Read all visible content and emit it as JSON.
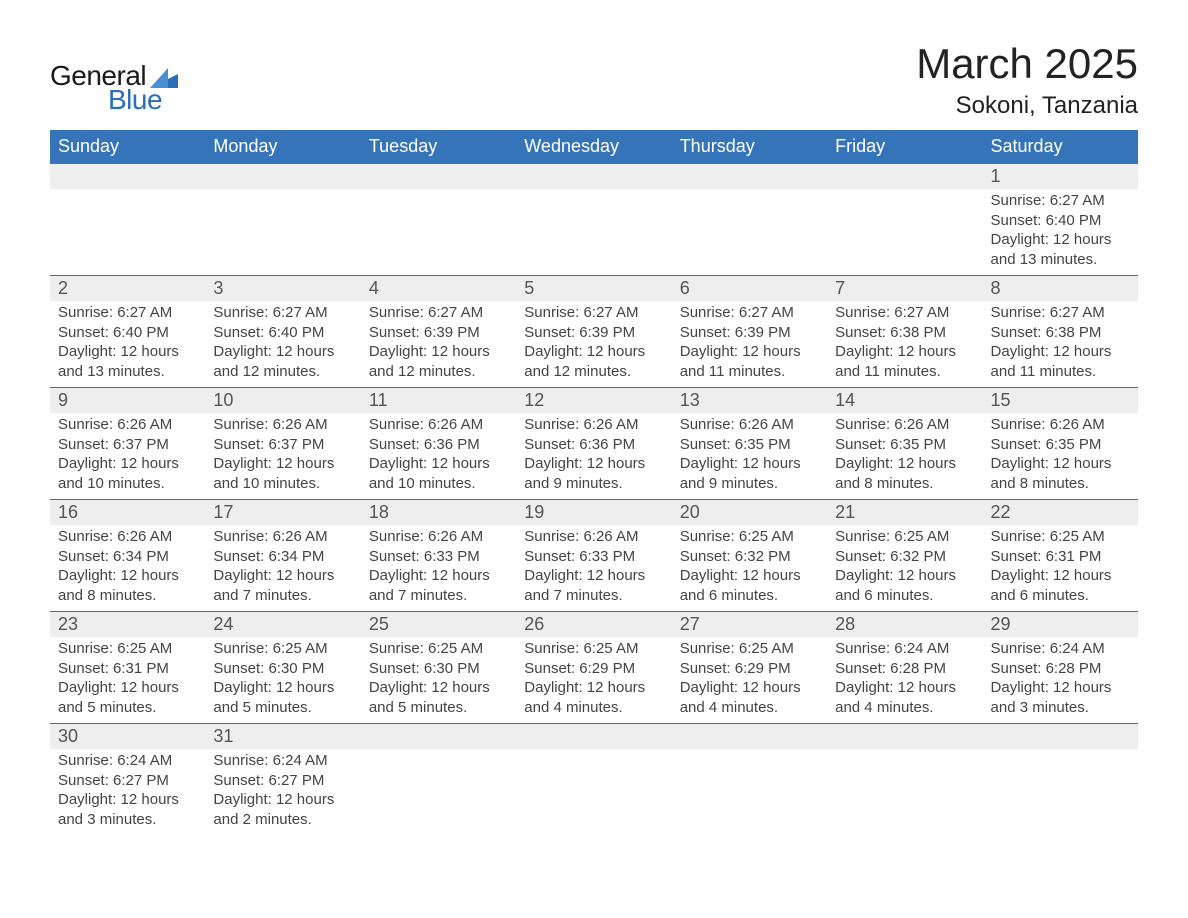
{
  "logo": {
    "text1": "General",
    "text2": "Blue"
  },
  "title": "March 2025",
  "location": "Sokoni, Tanzania",
  "colors": {
    "header_bg": "#3574b9",
    "header_text": "#ffffff",
    "daynum_bg": "#eeeeee",
    "text": "#444444",
    "logo_blue": "#2a6db8",
    "border": "#3574b9"
  },
  "dayNames": [
    "Sunday",
    "Monday",
    "Tuesday",
    "Wednesday",
    "Thursday",
    "Friday",
    "Saturday"
  ],
  "startOffset": 6,
  "days": [
    {
      "n": 1,
      "sunrise": "6:27 AM",
      "sunset": "6:40 PM",
      "daylight": "12 hours and 13 minutes."
    },
    {
      "n": 2,
      "sunrise": "6:27 AM",
      "sunset": "6:40 PM",
      "daylight": "12 hours and 13 minutes."
    },
    {
      "n": 3,
      "sunrise": "6:27 AM",
      "sunset": "6:40 PM",
      "daylight": "12 hours and 12 minutes."
    },
    {
      "n": 4,
      "sunrise": "6:27 AM",
      "sunset": "6:39 PM",
      "daylight": "12 hours and 12 minutes."
    },
    {
      "n": 5,
      "sunrise": "6:27 AM",
      "sunset": "6:39 PM",
      "daylight": "12 hours and 12 minutes."
    },
    {
      "n": 6,
      "sunrise": "6:27 AM",
      "sunset": "6:39 PM",
      "daylight": "12 hours and 11 minutes."
    },
    {
      "n": 7,
      "sunrise": "6:27 AM",
      "sunset": "6:38 PM",
      "daylight": "12 hours and 11 minutes."
    },
    {
      "n": 8,
      "sunrise": "6:27 AM",
      "sunset": "6:38 PM",
      "daylight": "12 hours and 11 minutes."
    },
    {
      "n": 9,
      "sunrise": "6:26 AM",
      "sunset": "6:37 PM",
      "daylight": "12 hours and 10 minutes."
    },
    {
      "n": 10,
      "sunrise": "6:26 AM",
      "sunset": "6:37 PM",
      "daylight": "12 hours and 10 minutes."
    },
    {
      "n": 11,
      "sunrise": "6:26 AM",
      "sunset": "6:36 PM",
      "daylight": "12 hours and 10 minutes."
    },
    {
      "n": 12,
      "sunrise": "6:26 AM",
      "sunset": "6:36 PM",
      "daylight": "12 hours and 9 minutes."
    },
    {
      "n": 13,
      "sunrise": "6:26 AM",
      "sunset": "6:35 PM",
      "daylight": "12 hours and 9 minutes."
    },
    {
      "n": 14,
      "sunrise": "6:26 AM",
      "sunset": "6:35 PM",
      "daylight": "12 hours and 8 minutes."
    },
    {
      "n": 15,
      "sunrise": "6:26 AM",
      "sunset": "6:35 PM",
      "daylight": "12 hours and 8 minutes."
    },
    {
      "n": 16,
      "sunrise": "6:26 AM",
      "sunset": "6:34 PM",
      "daylight": "12 hours and 8 minutes."
    },
    {
      "n": 17,
      "sunrise": "6:26 AM",
      "sunset": "6:34 PM",
      "daylight": "12 hours and 7 minutes."
    },
    {
      "n": 18,
      "sunrise": "6:26 AM",
      "sunset": "6:33 PM",
      "daylight": "12 hours and 7 minutes."
    },
    {
      "n": 19,
      "sunrise": "6:26 AM",
      "sunset": "6:33 PM",
      "daylight": "12 hours and 7 minutes."
    },
    {
      "n": 20,
      "sunrise": "6:25 AM",
      "sunset": "6:32 PM",
      "daylight": "12 hours and 6 minutes."
    },
    {
      "n": 21,
      "sunrise": "6:25 AM",
      "sunset": "6:32 PM",
      "daylight": "12 hours and 6 minutes."
    },
    {
      "n": 22,
      "sunrise": "6:25 AM",
      "sunset": "6:31 PM",
      "daylight": "12 hours and 6 minutes."
    },
    {
      "n": 23,
      "sunrise": "6:25 AM",
      "sunset": "6:31 PM",
      "daylight": "12 hours and 5 minutes."
    },
    {
      "n": 24,
      "sunrise": "6:25 AM",
      "sunset": "6:30 PM",
      "daylight": "12 hours and 5 minutes."
    },
    {
      "n": 25,
      "sunrise": "6:25 AM",
      "sunset": "6:30 PM",
      "daylight": "12 hours and 5 minutes."
    },
    {
      "n": 26,
      "sunrise": "6:25 AM",
      "sunset": "6:29 PM",
      "daylight": "12 hours and 4 minutes."
    },
    {
      "n": 27,
      "sunrise": "6:25 AM",
      "sunset": "6:29 PM",
      "daylight": "12 hours and 4 minutes."
    },
    {
      "n": 28,
      "sunrise": "6:24 AM",
      "sunset": "6:28 PM",
      "daylight": "12 hours and 4 minutes."
    },
    {
      "n": 29,
      "sunrise": "6:24 AM",
      "sunset": "6:28 PM",
      "daylight": "12 hours and 3 minutes."
    },
    {
      "n": 30,
      "sunrise": "6:24 AM",
      "sunset": "6:27 PM",
      "daylight": "12 hours and 3 minutes."
    },
    {
      "n": 31,
      "sunrise": "6:24 AM",
      "sunset": "6:27 PM",
      "daylight": "12 hours and 2 minutes."
    }
  ],
  "labels": {
    "sunrise": "Sunrise:",
    "sunset": "Sunset:",
    "daylight": "Daylight:"
  }
}
